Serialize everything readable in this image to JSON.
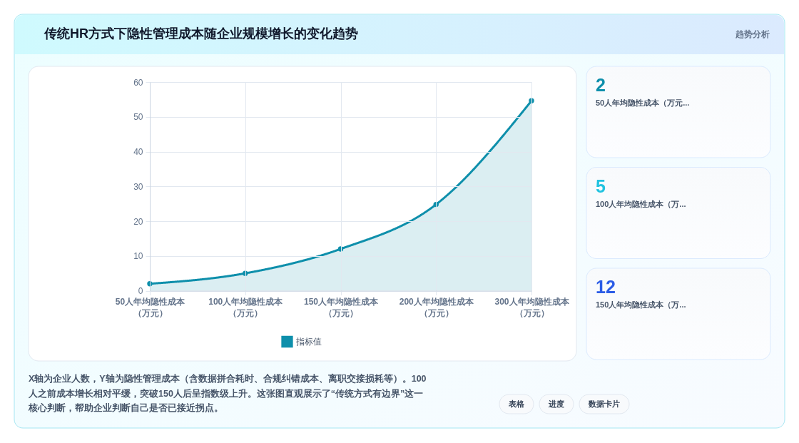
{
  "chart_data": [
    {
      "type": "area",
      "title": "传统HR方式下隐性管理成本随企业规模增长的变化趋势",
      "categories": [
        "50人年均隐性成本（万元）",
        "100人年均隐性成本（万元）",
        "150人年均隐性成本（万元）",
        "200人年均隐性成本（万元）",
        "300人年均隐性成本（万元）"
      ],
      "series": [
        {
          "name": "指标值",
          "color": "#0e8fab",
          "values": [
            2,
            5,
            12,
            24.8,
            54.6
          ]
        }
      ],
      "ylim": [
        0,
        60
      ],
      "yticks": [
        0,
        10,
        20,
        30,
        40,
        50,
        60
      ],
      "grid": true,
      "legend": "bottom",
      "marker": "circle",
      "annotations": [
        "趋势分析",
        "X轴为企业人数，Y轴为隐性管理成本（含数据拼合耗时、合规纠错成本、离职交接损耗等）。100人之前成本增长相对平缓，突破150人后呈指数级上升。这张图直观展示了“传统方式有边界”这一核心判断，帮助企业判断自己是否已接近拐点。",
        "表格",
        "进度",
        "数据卡片"
      ]
    },
    {
      "type": "other",
      "annotations": [
        "2",
        "50人年均隐性成本（万元...",
        "5",
        "100人年均隐性成本（万...",
        "12",
        "150人年均隐性成本（万..."
      ]
    }
  ]
}
